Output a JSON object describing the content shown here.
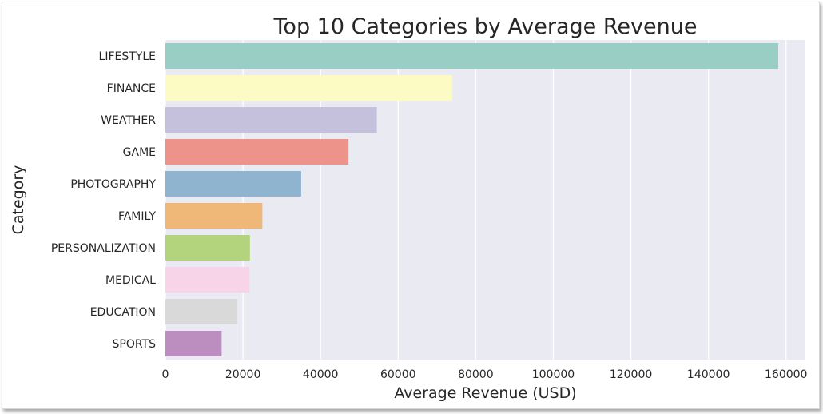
{
  "chart_data": {
    "type": "bar",
    "orientation": "horizontal",
    "title": "Top 10 Categories by Average Revenue",
    "xlabel": "Average Revenue (USD)",
    "ylabel": "Category",
    "categories": [
      "LIFESTYLE",
      "FINANCE",
      "WEATHER",
      "GAME",
      "PHOTOGRAPHY",
      "FAMILY",
      "PERSONALIZATION",
      "MEDICAL",
      "EDUCATION",
      "SPORTS"
    ],
    "values": [
      158000,
      74000,
      54500,
      47200,
      35000,
      25000,
      21800,
      21700,
      18500,
      14500
    ],
    "colors": [
      "#99cec5",
      "#fbfbc3",
      "#c5c0dc",
      "#ee9389",
      "#8eb4cf",
      "#efb878",
      "#b3d47d",
      "#f7d4e7",
      "#d9d9d9",
      "#bb8ebf"
    ],
    "xlim": [
      0,
      165000
    ],
    "xticks": [
      0,
      20000,
      40000,
      60000,
      80000,
      100000,
      120000,
      140000,
      160000
    ],
    "xtick_labels": [
      "0",
      "20000",
      "40000",
      "60000",
      "80000",
      "100000",
      "120000",
      "140000",
      "160000"
    ],
    "grid": true,
    "style": {
      "plot_background": "#eaeaf2",
      "grid_color": "#ffffff"
    }
  }
}
